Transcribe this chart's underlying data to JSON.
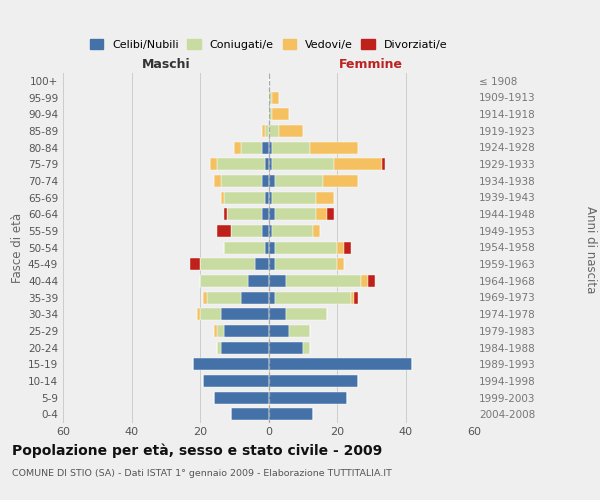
{
  "age_groups": [
    "0-4",
    "5-9",
    "10-14",
    "15-19",
    "20-24",
    "25-29",
    "30-34",
    "35-39",
    "40-44",
    "45-49",
    "50-54",
    "55-59",
    "60-64",
    "65-69",
    "70-74",
    "75-79",
    "80-84",
    "85-89",
    "90-94",
    "95-99",
    "100+"
  ],
  "birth_years": [
    "2004-2008",
    "1999-2003",
    "1994-1998",
    "1989-1993",
    "1984-1988",
    "1979-1983",
    "1974-1978",
    "1969-1973",
    "1964-1968",
    "1959-1963",
    "1954-1958",
    "1949-1953",
    "1944-1948",
    "1939-1943",
    "1934-1938",
    "1929-1933",
    "1924-1928",
    "1919-1923",
    "1914-1918",
    "1909-1913",
    "≤ 1908"
  ],
  "colors": {
    "celibi": "#4472a8",
    "coniugati": "#c8dba0",
    "vedovi": "#f5c060",
    "divorziati": "#c0201a"
  },
  "maschi": {
    "celibi": [
      11,
      16,
      19,
      22,
      14,
      13,
      14,
      8,
      6,
      4,
      1,
      2,
      2,
      1,
      2,
      1,
      2,
      0,
      0,
      0,
      0
    ],
    "coniugati": [
      0,
      0,
      0,
      0,
      1,
      2,
      6,
      10,
      14,
      16,
      12,
      9,
      10,
      12,
      12,
      14,
      6,
      1,
      0,
      0,
      0
    ],
    "vedovi": [
      0,
      0,
      0,
      0,
      0,
      1,
      1,
      1,
      0,
      0,
      0,
      0,
      0,
      1,
      2,
      2,
      2,
      1,
      0,
      0,
      0
    ],
    "divorziati": [
      0,
      0,
      0,
      0,
      0,
      0,
      0,
      0,
      0,
      3,
      0,
      4,
      1,
      0,
      0,
      0,
      0,
      0,
      0,
      0,
      0
    ]
  },
  "femmine": {
    "nubili": [
      13,
      23,
      26,
      42,
      10,
      6,
      5,
      2,
      5,
      2,
      2,
      1,
      2,
      1,
      2,
      1,
      1,
      0,
      0,
      0,
      0
    ],
    "coniugate": [
      0,
      0,
      0,
      0,
      2,
      6,
      12,
      22,
      22,
      18,
      18,
      12,
      12,
      13,
      14,
      18,
      11,
      3,
      1,
      1,
      0
    ],
    "vedove": [
      0,
      0,
      0,
      0,
      0,
      0,
      0,
      1,
      2,
      2,
      2,
      2,
      3,
      5,
      10,
      14,
      14,
      7,
      5,
      2,
      0
    ],
    "divorziate": [
      0,
      0,
      0,
      0,
      0,
      0,
      0,
      1,
      2,
      0,
      2,
      0,
      2,
      0,
      0,
      1,
      0,
      0,
      0,
      0,
      0
    ]
  },
  "xlim": 60,
  "title": "Popolazione per età, sesso e stato civile - 2009",
  "subtitle": "COMUNE DI STIO (SA) - Dati ISTAT 1° gennaio 2009 - Elaborazione TUTTITALIA.IT",
  "ylabel_left": "Fasce di età",
  "ylabel_right": "Anni di nascita",
  "xlabel_left": "Maschi",
  "xlabel_right": "Femmine",
  "legend_labels": [
    "Celibi/Nubili",
    "Coniugati/e",
    "Vedovi/e",
    "Divorziati/e"
  ],
  "background_color": "#efefef",
  "grid_color": "#cccccc"
}
